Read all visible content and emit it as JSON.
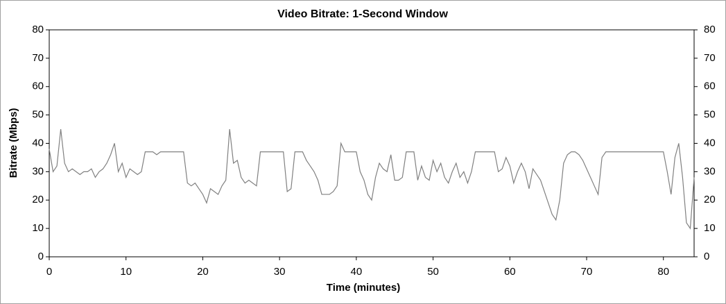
{
  "chart_data": {
    "type": "line",
    "title": "Video Bitrate: 1-Second Window",
    "x_label": "Time (minutes)",
    "y_label": "Bitrate (Mbps)",
    "x": [
      0,
      0.5,
      1,
      1.5,
      2,
      2.5,
      3,
      3.5,
      4,
      4.5,
      5,
      5.5,
      6,
      6.5,
      7,
      7.5,
      8,
      8.5,
      9,
      9.5,
      10,
      10.5,
      11,
      11.5,
      12,
      12.5,
      13,
      13.5,
      14,
      14.5,
      15,
      15.5,
      16,
      16.5,
      17,
      17.5,
      18,
      18.5,
      19,
      19.5,
      20,
      20.5,
      21,
      21.5,
      22,
      22.5,
      23,
      23.5,
      24,
      24.5,
      25,
      25.5,
      26,
      26.5,
      27,
      27.5,
      28,
      28.5,
      29,
      29.5,
      30,
      30.5,
      31,
      31.5,
      32,
      32.5,
      33,
      33.5,
      34,
      34.5,
      35,
      35.5,
      36,
      36.5,
      37,
      37.5,
      38,
      38.5,
      39,
      39.5,
      40,
      40.5,
      41,
      41.5,
      42,
      42.5,
      43,
      43.5,
      44,
      44.5,
      45,
      45.5,
      46,
      46.5,
      47,
      47.5,
      48,
      48.5,
      49,
      49.5,
      50,
      50.5,
      51,
      51.5,
      52,
      52.5,
      53,
      53.5,
      54,
      54.5,
      55,
      55.5,
      56,
      56.5,
      57,
      57.5,
      58,
      58.5,
      59,
      59.5,
      60,
      60.5,
      61,
      61.5,
      62,
      62.5,
      63,
      63.5,
      64,
      64.5,
      65,
      65.5,
      66,
      66.5,
      67,
      67.5,
      68,
      68.5,
      69,
      69.5,
      70,
      70.5,
      71,
      71.5,
      72,
      72.5,
      73,
      73.5,
      74,
      74.5,
      75,
      75.5,
      76,
      76.5,
      77,
      77.5,
      78,
      78.5,
      79,
      79.5,
      80,
      80.5,
      81,
      81.5,
      82,
      82.5,
      83,
      83.5,
      84
    ],
    "values": [
      38,
      30,
      32,
      45,
      33,
      30,
      31,
      30,
      29,
      30,
      30,
      31,
      28,
      30,
      31,
      33,
      36,
      40,
      30,
      33,
      28,
      31,
      30,
      29,
      30,
      37,
      37,
      37,
      36,
      37,
      37,
      37,
      37,
      37,
      37,
      37,
      26,
      25,
      26,
      24,
      22,
      19,
      24,
      23,
      22,
      25,
      27,
      45,
      33,
      34,
      28,
      26,
      27,
      26,
      25,
      37,
      37,
      37,
      37,
      37,
      37,
      37,
      23,
      24,
      37,
      37,
      37,
      34,
      32,
      30,
      27,
      22,
      22,
      22,
      23,
      25,
      40,
      37,
      37,
      37,
      37,
      30,
      27,
      22,
      20,
      28,
      33,
      31,
      30,
      36,
      27,
      27,
      28,
      37,
      37,
      37,
      27,
      32,
      28,
      27,
      34,
      30,
      33,
      28,
      26,
      30,
      33,
      28,
      30,
      26,
      30,
      37,
      37,
      37,
      37,
      37,
      37,
      30,
      31,
      35,
      32,
      26,
      30,
      33,
      30,
      24,
      31,
      29,
      27,
      23,
      19,
      15,
      13,
      20,
      33,
      36,
      37,
      37,
      36,
      34,
      31,
      28,
      25,
      22,
      35,
      37,
      37,
      37,
      37,
      37,
      37,
      37,
      37,
      37,
      37,
      37,
      37,
      37,
      37,
      37,
      37,
      30,
      22,
      35,
      40,
      28,
      12,
      10,
      28
    ],
    "color": "#808080",
    "xlim": [
      0,
      84
    ],
    "xticks": [
      0,
      10,
      20,
      30,
      40,
      50,
      60,
      70,
      80
    ],
    "ylim": [
      0,
      80
    ],
    "yticks": [
      0,
      10,
      20,
      30,
      40,
      50,
      60,
      70,
      80
    ],
    "y2lim": [
      0,
      80
    ],
    "y2ticks": [
      0,
      10,
      20,
      30,
      40,
      50,
      60,
      70,
      80
    ],
    "grid": false
  }
}
